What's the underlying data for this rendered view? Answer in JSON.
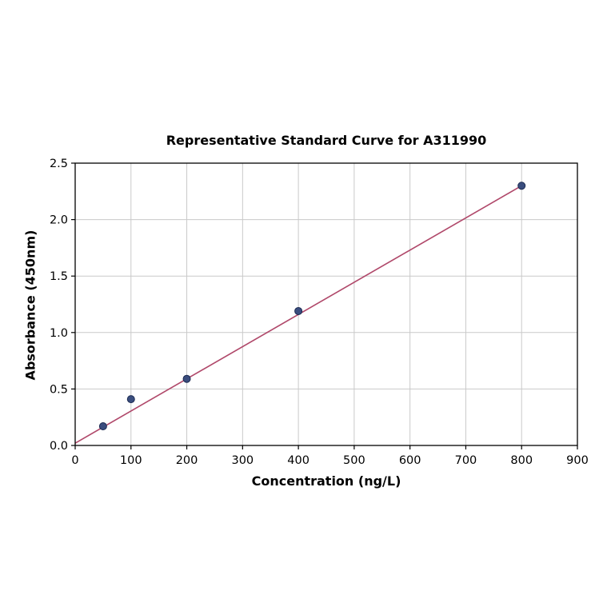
{
  "chart_data": {
    "type": "scatter",
    "title": "Representative Standard Curve for A311990",
    "xlabel": "Concentration (ng/L)",
    "ylabel": "Absorbance (450nm)",
    "xlim": [
      0,
      900
    ],
    "ylim": [
      0,
      2.5
    ],
    "grid": true,
    "legend_position": "none",
    "x_ticks": [
      0,
      100,
      200,
      300,
      400,
      500,
      600,
      700,
      800,
      900
    ],
    "x_tick_labels": [
      "0",
      "100",
      "200",
      "300",
      "400",
      "500",
      "600",
      "700",
      "800",
      "900"
    ],
    "y_ticks": [
      0.0,
      0.5,
      1.0,
      1.5,
      2.0,
      2.5
    ],
    "y_tick_labels": [
      "0.0",
      "0.5",
      "1.0",
      "1.5",
      "2.0",
      "2.5"
    ],
    "points": {
      "x": [
        50,
        100,
        200,
        400,
        800
      ],
      "y": [
        0.17,
        0.41,
        0.59,
        1.19,
        2.3
      ]
    },
    "fit_line": {
      "x": [
        0,
        800
      ],
      "y": [
        0.02,
        2.3
      ]
    },
    "colors": {
      "line": "#b0486a",
      "marker": "#3a4d7e",
      "marker_edge": "#1c2b52",
      "grid": "#c9c9c9",
      "axis": "#000000",
      "background": "#ffffff"
    }
  }
}
